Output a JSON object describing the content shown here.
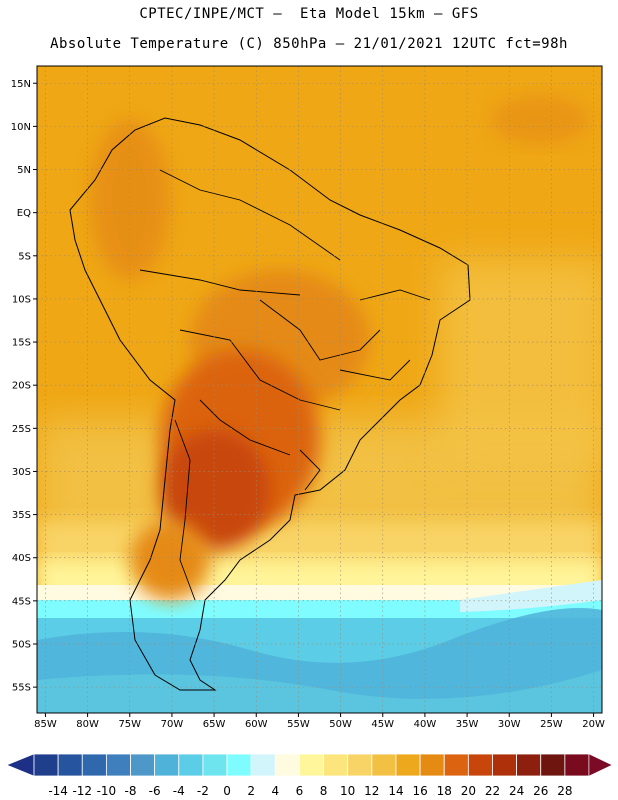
{
  "title_line1": "CPTEC/INPE/MCT –  Eta Model 15km – GFS",
  "title_line2": "Absolute Temperature (C) 850hPa – 21/01/2021 12UTC fct=98h",
  "map": {
    "lat_range": [
      17,
      -58
    ],
    "lon_range": [
      -86,
      -19
    ],
    "lat_ticks": [
      "15N",
      "10N",
      "5N",
      "EQ",
      "5S",
      "10S",
      "15S",
      "20S",
      "25S",
      "30S",
      "35S",
      "40S",
      "45S",
      "50S",
      "55S"
    ],
    "lon_ticks": [
      "85W",
      "80W",
      "75W",
      "70W",
      "65W",
      "60W",
      "55W",
      "50W",
      "45W",
      "40W",
      "35W",
      "30W",
      "25W",
      "20W"
    ]
  },
  "colorbar": {
    "labels": [
      "-14",
      "-12",
      "-10",
      "-8",
      "-6",
      "-4",
      "-2",
      "0",
      "2",
      "4",
      "6",
      "8",
      "10",
      "12",
      "14",
      "16",
      "18",
      "20",
      "22",
      "24",
      "26",
      "28"
    ],
    "colors": [
      "#1f3e8c",
      "#26549e",
      "#3068ae",
      "#3f7fbd",
      "#4e98c9",
      "#4fb2d8",
      "#5ccde6",
      "#6ee5ee",
      "#7ffcff",
      "#d2f5fb",
      "#fffbe0",
      "#fff59a",
      "#fbe57c",
      "#f8d466",
      "#f2c043",
      "#eda81e",
      "#e58a12",
      "#dc6410",
      "#c8460c",
      "#ad300b",
      "#8d1f0e",
      "#6e1510",
      "#7a0a1e"
    ],
    "arrow_left_color": "#1e2f86",
    "arrow_right_color": "#7a0a26"
  }
}
